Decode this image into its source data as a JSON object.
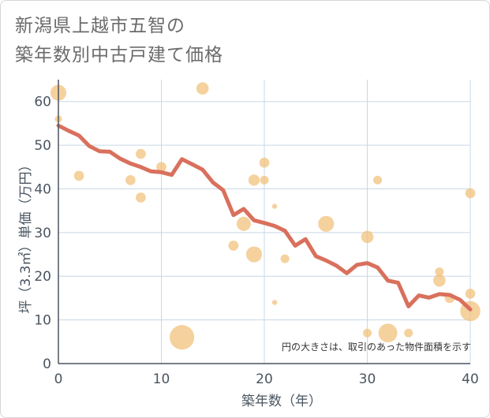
{
  "title_line1": "新潟県上越市五智の",
  "title_line2": "築年数別中古戸建て価格",
  "note": "円の大きさは、取引のあった物件面積を示す",
  "colors": {
    "line": "#d9705d",
    "bubble": "#f2c27c",
    "grid": "#c8d8e6",
    "axis": "#4a5560"
  },
  "chart_data": {
    "type": "scatter",
    "xlabel": "築年数（年）",
    "ylabel": "坪（3.3㎡）単価（万円）",
    "xlim": [
      0,
      40
    ],
    "ylim": [
      0,
      65
    ],
    "xticks": [
      0,
      10,
      20,
      30,
      40
    ],
    "yticks": [
      0,
      10,
      20,
      30,
      40,
      50,
      60
    ],
    "grid": true,
    "series": [
      {
        "type": "bubble",
        "points": [
          {
            "x": 0,
            "y": 62,
            "size": 5
          },
          {
            "x": 0,
            "y": 56,
            "size": 1
          },
          {
            "x": 2,
            "y": 43,
            "size": 2
          },
          {
            "x": 7,
            "y": 42,
            "size": 2
          },
          {
            "x": 8,
            "y": 48,
            "size": 2
          },
          {
            "x": 8,
            "y": 38,
            "size": 2
          },
          {
            "x": 10,
            "y": 45,
            "size": 2
          },
          {
            "x": 12,
            "y": 6,
            "size": 12
          },
          {
            "x": 14,
            "y": 63,
            "size": 3
          },
          {
            "x": 17,
            "y": 27,
            "size": 2
          },
          {
            "x": 18,
            "y": 32,
            "size": 4
          },
          {
            "x": 19,
            "y": 42,
            "size": 2.5
          },
          {
            "x": 19,
            "y": 25,
            "size": 5
          },
          {
            "x": 20,
            "y": 46,
            "size": 2
          },
          {
            "x": 20,
            "y": 42,
            "size": 1.5
          },
          {
            "x": 21,
            "y": 36,
            "size": 0.5
          },
          {
            "x": 21,
            "y": 14,
            "size": 0.5
          },
          {
            "x": 22,
            "y": 24,
            "size": 1.5
          },
          {
            "x": 26,
            "y": 32,
            "size": 5
          },
          {
            "x": 30,
            "y": 29,
            "size": 3
          },
          {
            "x": 30,
            "y": 7,
            "size": 1.5
          },
          {
            "x": 31,
            "y": 42,
            "size": 1.5
          },
          {
            "x": 32,
            "y": 7,
            "size": 7
          },
          {
            "x": 34,
            "y": 7,
            "size": 1.5
          },
          {
            "x": 37,
            "y": 21,
            "size": 1.5
          },
          {
            "x": 37,
            "y": 19,
            "size": 3
          },
          {
            "x": 38,
            "y": 15,
            "size": 2
          },
          {
            "x": 40,
            "y": 39,
            "size": 2
          },
          {
            "x": 40,
            "y": 16,
            "size": 2
          },
          {
            "x": 40,
            "y": 12,
            "size": 8
          }
        ]
      },
      {
        "type": "line",
        "x": [
          0,
          1,
          2,
          3,
          4,
          5,
          6,
          7,
          8,
          9,
          10,
          11,
          12,
          13,
          14,
          15,
          16,
          17,
          18,
          19,
          20,
          21,
          22,
          23,
          24,
          25,
          26,
          27,
          28,
          29,
          30,
          31,
          32,
          33,
          34,
          35,
          36,
          37,
          38,
          39,
          40
        ],
        "y": [
          54.5,
          53.3,
          52.2,
          49.8,
          48.6,
          48.5,
          46.9,
          45.8,
          45.0,
          44.0,
          43.8,
          43.2,
          46.8,
          45.6,
          44.4,
          41.5,
          39.7,
          34.0,
          35.4,
          32.8,
          32.2,
          31.5,
          30.4,
          27.0,
          28.5,
          24.6,
          23.6,
          22.4,
          20.7,
          22.6,
          23.0,
          22.0,
          19.0,
          18.5,
          13.1,
          15.6,
          15.1,
          15.9,
          15.7,
          14.6,
          12.4
        ]
      }
    ]
  }
}
